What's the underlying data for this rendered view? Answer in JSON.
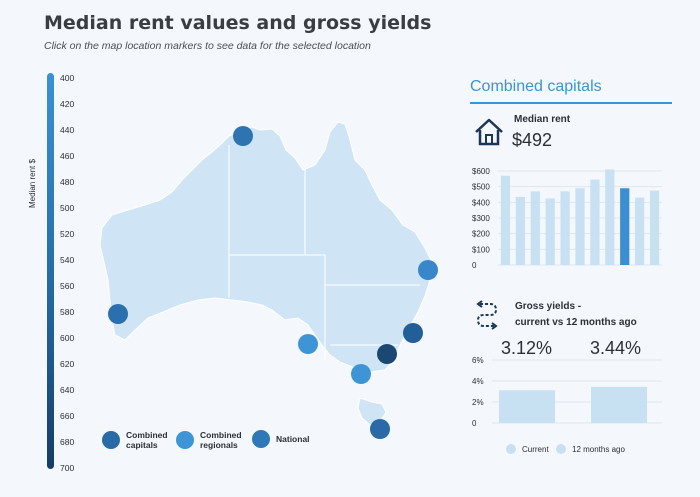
{
  "header": {
    "title": "Median rent values and gross yields",
    "subtitle": "Click on the map location markers to see data for the selected location"
  },
  "scale": {
    "label": "Median rent $",
    "ticks": [
      "400",
      "420",
      "440",
      "460",
      "480",
      "500",
      "520",
      "540",
      "560",
      "580",
      "600",
      "620",
      "640",
      "660",
      "680",
      "700"
    ]
  },
  "map": {
    "land_color": "#cfe4f5",
    "markers": [
      {
        "name": "darwin-marker",
        "color": "#2e74b3"
      },
      {
        "name": "brisbane-marker",
        "color": "#3888c9"
      },
      {
        "name": "sydney-marker",
        "color": "#225f98"
      },
      {
        "name": "canberra-marker",
        "color": "#1a4872"
      },
      {
        "name": "melbourne-marker",
        "color": "#3e95d6"
      },
      {
        "name": "adelaide-marker",
        "color": "#3e95d6"
      },
      {
        "name": "perth-marker",
        "color": "#2b70ae"
      },
      {
        "name": "hobart-marker",
        "color": "#2a6aa6"
      }
    ]
  },
  "map_legend": [
    {
      "label": "Combined\ncapitals",
      "color": "#2a6aa6"
    },
    {
      "label": "Combined\nregionals",
      "color": "#3e95d6"
    },
    {
      "label": "National",
      "color": "#2e78b8"
    }
  ],
  "panel": {
    "title": "Combined capitals",
    "rent_label": "Median rent",
    "rent_value": "$492",
    "yield_label_line1": "Gross yields -",
    "yield_label_line2": "current vs 12 months ago",
    "yield_current": "3.12%",
    "yield_ago": "3.44%"
  },
  "chart_data": [
    {
      "type": "bar",
      "title": "",
      "yticks": [
        "$600",
        "$500",
        "$400",
        "$300",
        "$200",
        "$100",
        "0"
      ],
      "ylim": [
        0,
        600
      ],
      "values": [
        570,
        435,
        470,
        425,
        470,
        490,
        545,
        610,
        490,
        430,
        475
      ],
      "highlight_index": 8,
      "bar_color": "#c7e0f2",
      "highlight_color": "#3b8fd0"
    },
    {
      "type": "bar",
      "title": "",
      "yticks": [
        "6%",
        "4%",
        "2%",
        "0"
      ],
      "ylim": [
        0,
        6
      ],
      "series": [
        {
          "name": "Current",
          "values": [
            3.12
          ]
        },
        {
          "name": "12 months ago",
          "values": [
            3.44
          ]
        }
      ],
      "bar_color": "#c7e0f2"
    }
  ]
}
